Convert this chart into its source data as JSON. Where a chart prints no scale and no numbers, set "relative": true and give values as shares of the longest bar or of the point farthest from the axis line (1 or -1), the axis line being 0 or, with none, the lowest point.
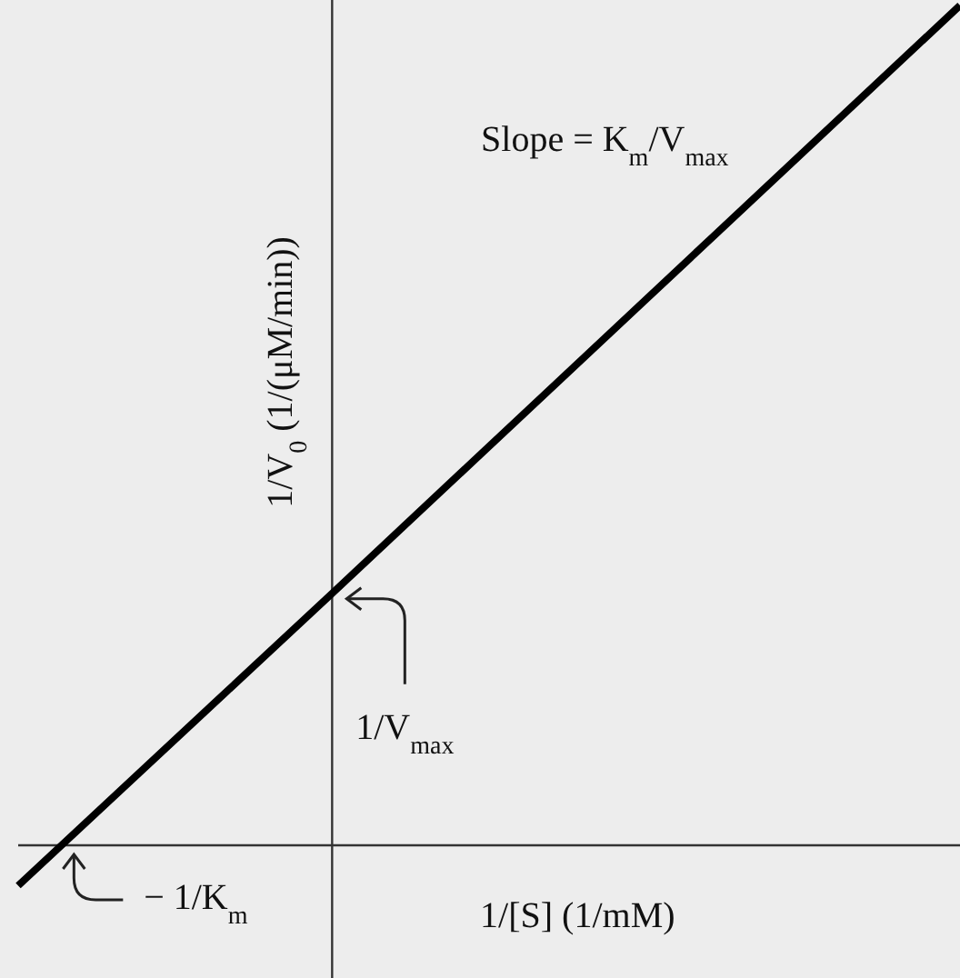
{
  "chart_data": {
    "type": "line",
    "relative": true,
    "xlabel": "1/[S] (1/mM)",
    "ylabel": "1/V$_{0}$ (1/(μM/min))",
    "categories": [
      null,
      null,
      null,
      null
    ],
    "series": [
      {
        "color": "#000000",
        "values": [
          -0.048,
          0.3,
          0.65,
          1
        ]
      }
    ],
    "annotations": [
      "Slope = K$_{m}$/V$_{max}$",
      "1/V$_{max}$",
      "− 1/K$_{m}$"
    ]
  }
}
